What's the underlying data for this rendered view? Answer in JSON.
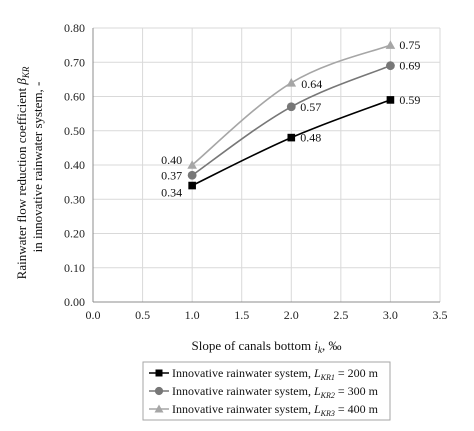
{
  "chart_data": {
    "type": "line",
    "title": "",
    "xlabel": {
      "text": "Slope of canals bottom ",
      "italic": "i",
      "sub": "k",
      "suffix": ", ‰"
    },
    "ylabel": {
      "line1": "Rainwater flow reduction coefficient ",
      "line1_italic": "β",
      "line1_sub": "KR",
      "line2": "in innovative rainwater system, -"
    },
    "xlim": [
      0.0,
      3.5
    ],
    "ylim": [
      0.0,
      0.8
    ],
    "x_ticks": [
      "0.0",
      "0.5",
      "1.0",
      "1.5",
      "2.0",
      "2.5",
      "3.0",
      "3.5"
    ],
    "y_ticks": [
      "0.00",
      "0.10",
      "0.20",
      "0.30",
      "0.40",
      "0.50",
      "0.60",
      "0.70",
      "0.80"
    ],
    "x_tick_values": [
      0.0,
      0.5,
      1.0,
      1.5,
      2.0,
      2.5,
      3.0,
      3.5
    ],
    "y_tick_values": [
      0.0,
      0.1,
      0.2,
      0.3,
      0.4,
      0.5,
      0.6,
      0.7,
      0.8
    ],
    "grid": "on",
    "legend_position": "bottom",
    "x": [
      1.0,
      2.0,
      3.0
    ],
    "series": [
      {
        "name": "Innovative rainwater system,",
        "legend_label_symbol": "L",
        "legend_label_sub": "KR1",
        "legend_label_value": " = 200 m",
        "marker": "square",
        "color": "#000000",
        "values": [
          0.34,
          0.48,
          0.59
        ],
        "labels": [
          "0.34",
          "0.48",
          "0.59"
        ],
        "label_side": [
          "left",
          "right",
          "right"
        ]
      },
      {
        "name": "Innovative rainwater system,",
        "legend_label_symbol": "L",
        "legend_label_sub": "KR2",
        "legend_label_value": " = 300 m",
        "marker": "circle",
        "color": "#777777",
        "values": [
          0.37,
          0.57,
          0.69
        ],
        "labels": [
          "0.37",
          "0.57",
          "0.69"
        ],
        "label_side": [
          "left",
          "right",
          "right"
        ]
      },
      {
        "name": "Innovative rainwater system,",
        "legend_label_symbol": "L",
        "legend_label_sub": "KR3",
        "legend_label_value": " = 400 m",
        "marker": "triangle",
        "color": "#a6a6a6",
        "values": [
          0.4,
          0.64,
          0.75
        ],
        "labels": [
          "0.40",
          "0.64",
          "0.75"
        ],
        "label_side": [
          "left",
          "above",
          "right"
        ]
      }
    ]
  }
}
